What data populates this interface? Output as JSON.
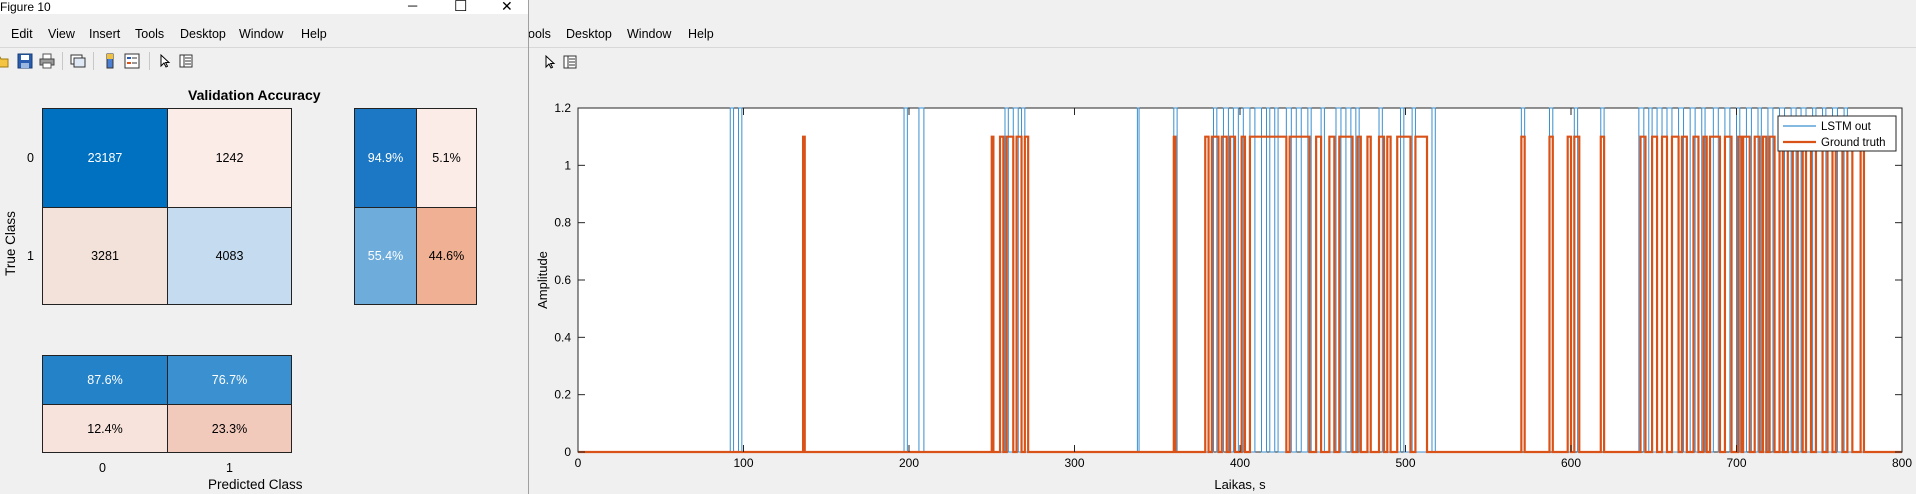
{
  "front_window": {
    "title": "Figure 10",
    "controls": {
      "minimize": "─",
      "maximize": "☐",
      "close": "✕"
    },
    "menu": [
      "Edit",
      "View",
      "Insert",
      "Tools",
      "Desktop",
      "Window",
      "Help"
    ]
  },
  "back_window": {
    "menu": [
      "ools",
      "Desktop",
      "Window",
      "Help"
    ]
  },
  "confusion_chart": {
    "title": "Validation Accuracy",
    "ylabel": "True Class",
    "xlabel": "Predicted Class",
    "row_labels": [
      "0",
      "1"
    ],
    "col_labels": [
      "0",
      "1"
    ],
    "matrix": [
      [
        "23187",
        "1242"
      ],
      [
        "3281",
        "4083"
      ]
    ],
    "row_summary": [
      [
        "94.9%",
        "5.1%"
      ],
      [
        "55.4%",
        "44.6%"
      ]
    ],
    "col_summary": [
      [
        "87.6%",
        "76.7%"
      ],
      [
        "12.4%",
        "23.3%"
      ]
    ],
    "colors": {
      "matrix": [
        [
          "#0070c0",
          "#fbece8"
        ],
        [
          "#f3e2d9",
          "#c5dcf0"
        ]
      ],
      "row_summary": [
        [
          "#1c78c4",
          "#fbece8"
        ],
        [
          "#6eaddb",
          "#efb094"
        ]
      ],
      "col_summary": [
        [
          "#2482c8",
          "#3b90cf"
        ],
        [
          "#f8e3dc",
          "#f2cabc"
        ]
      ]
    }
  },
  "chart_data": {
    "type": "line",
    "title": "",
    "xlabel": "Laikas, s",
    "ylabel": "Amplitude",
    "xlim": [
      0,
      800
    ],
    "ylim": [
      0,
      1.2
    ],
    "xticks": [
      0,
      100,
      200,
      300,
      400,
      500,
      600,
      700,
      800
    ],
    "yticks": [
      0,
      0.2,
      0.4,
      0.6,
      0.8,
      1,
      1.2
    ],
    "ytick_labels": [
      "0",
      "0.2",
      "0.4",
      "0.6",
      "0.8",
      "1",
      "1.2"
    ],
    "legend_position": "top-right",
    "grid": false,
    "series": [
      {
        "name": "LSTM out",
        "color": "#3a8fd0",
        "high": 1.2,
        "pulses": [
          [
            92,
            94
          ],
          [
            97,
            99
          ],
          [
            197,
            199
          ],
          [
            206,
            209
          ],
          [
            258,
            260
          ],
          [
            263,
            266
          ],
          [
            268,
            270
          ],
          [
            338,
            339
          ],
          [
            360,
            362
          ],
          [
            384,
            386
          ],
          [
            390,
            393
          ],
          [
            396,
            399
          ],
          [
            402,
            406
          ],
          [
            409,
            413
          ],
          [
            416,
            418
          ],
          [
            421,
            423
          ],
          [
            428,
            431
          ],
          [
            434,
            437
          ],
          [
            441,
            443
          ],
          [
            449,
            451
          ],
          [
            458,
            461
          ],
          [
            464,
            467
          ],
          [
            470,
            472
          ],
          [
            484,
            486
          ],
          [
            497,
            499
          ],
          [
            504,
            506
          ],
          [
            516,
            518
          ],
          [
            570,
            572
          ],
          [
            587,
            589
          ],
          [
            602,
            604
          ],
          [
            618,
            620
          ],
          [
            641,
            644
          ],
          [
            647,
            649
          ],
          [
            652,
            655
          ],
          [
            658,
            661
          ],
          [
            665,
            668
          ],
          [
            672,
            675
          ],
          [
            679,
            681
          ],
          [
            686,
            689
          ],
          [
            693,
            696
          ],
          [
            700,
            702
          ],
          [
            706,
            709
          ],
          [
            713,
            715
          ],
          [
            719,
            722
          ],
          [
            726,
            729
          ],
          [
            733,
            736
          ],
          [
            739,
            742
          ],
          [
            746,
            748
          ],
          [
            752,
            754
          ],
          [
            758,
            761
          ],
          [
            765,
            767
          ]
        ]
      },
      {
        "name": "Ground truth",
        "color": "#d95319",
        "high": 1.1,
        "pulses": [
          [
            136,
            137
          ],
          [
            250,
            251
          ],
          [
            255,
            257
          ],
          [
            259,
            263
          ],
          [
            265,
            268
          ],
          [
            270,
            272
          ],
          [
            360,
            361
          ],
          [
            379,
            381
          ],
          [
            383,
            387
          ],
          [
            389,
            392
          ],
          [
            394,
            397
          ],
          [
            401,
            403
          ],
          [
            406,
            428
          ],
          [
            430,
            442
          ],
          [
            446,
            449
          ],
          [
            454,
            457
          ],
          [
            460,
            468
          ],
          [
            471,
            473
          ],
          [
            477,
            479
          ],
          [
            484,
            487
          ],
          [
            489,
            491
          ],
          [
            495,
            503
          ],
          [
            506,
            513
          ],
          [
            570,
            572
          ],
          [
            587,
            589
          ],
          [
            598,
            600
          ],
          [
            602,
            605
          ],
          [
            618,
            620
          ],
          [
            642,
            645
          ],
          [
            649,
            652
          ],
          [
            655,
            658
          ],
          [
            661,
            665
          ],
          [
            667,
            670
          ],
          [
            674,
            677
          ],
          [
            680,
            682
          ],
          [
            684,
            690
          ],
          [
            693,
            697
          ],
          [
            701,
            703
          ],
          [
            704,
            708
          ],
          [
            711,
            714
          ],
          [
            716,
            718
          ],
          [
            720,
            723
          ],
          [
            726,
            728
          ],
          [
            731,
            734
          ],
          [
            737,
            740
          ],
          [
            742,
            745
          ],
          [
            748,
            752
          ],
          [
            755,
            758
          ],
          [
            760,
            764
          ],
          [
            767,
            770
          ],
          [
            775,
            777
          ]
        ]
      }
    ]
  }
}
